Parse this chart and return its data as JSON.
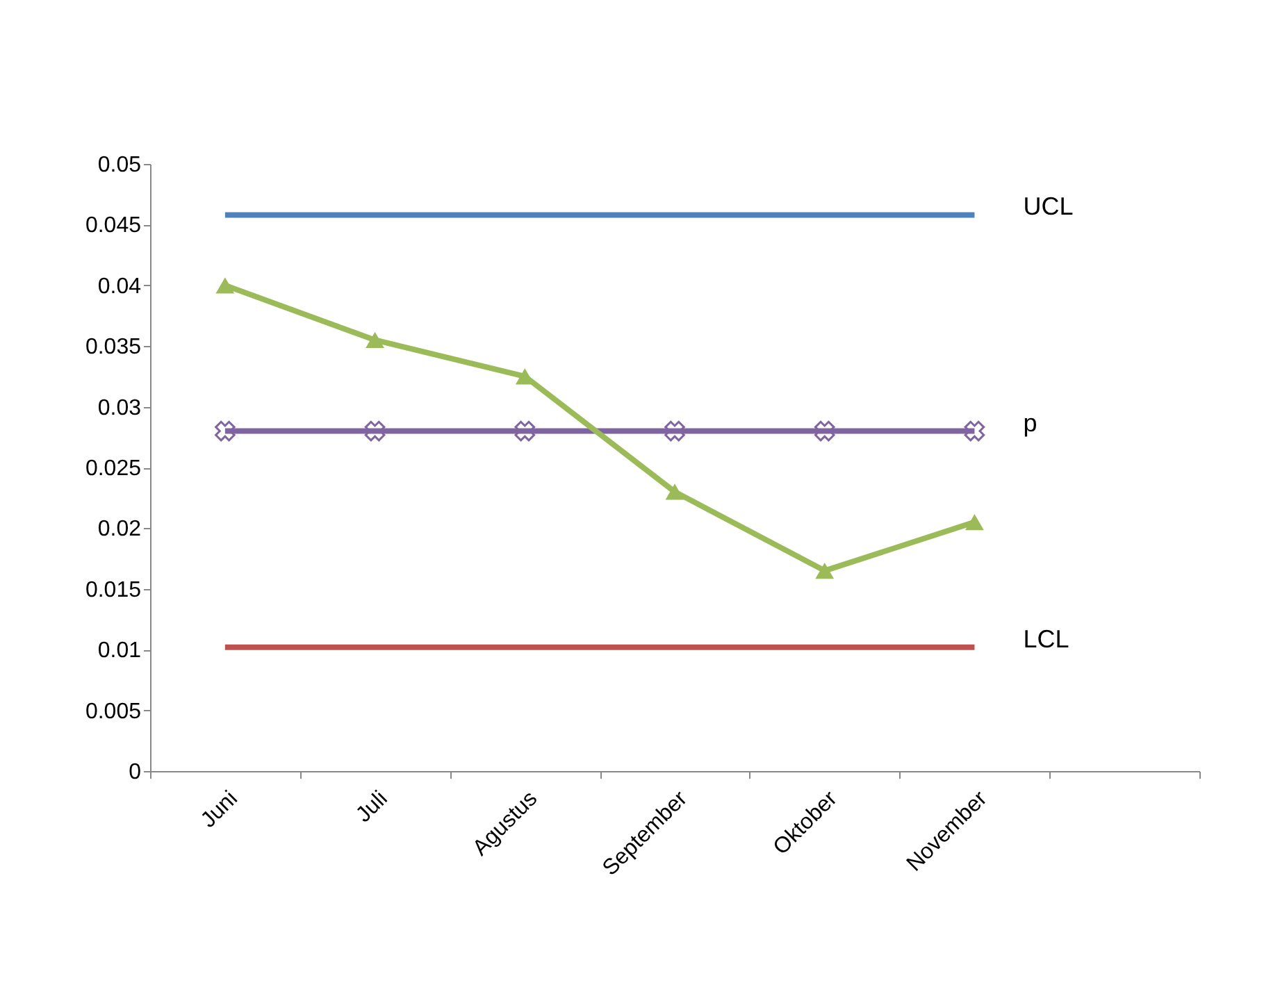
{
  "chart_data": {
    "type": "line",
    "categories": [
      "Juni",
      "Juli",
      "Agustus",
      "September",
      "Oktober",
      "November",
      null
    ],
    "series": [
      {
        "name": "UCL",
        "color": "#4f81bd",
        "marker": "none",
        "values": [
          0.0458,
          0.0458,
          0.0458,
          0.0458,
          0.0458,
          0.0458,
          null
        ]
      },
      {
        "name": "p",
        "color": "#8064a2",
        "marker": "cross",
        "values": [
          0.028,
          0.028,
          0.028,
          0.028,
          0.028,
          0.028,
          null
        ]
      },
      {
        "name": "LCL",
        "color": "#c0504d",
        "marker": "none",
        "values": [
          0.0102,
          0.0102,
          0.0102,
          0.0102,
          0.0102,
          0.0102,
          null
        ]
      },
      {
        "color": "#9bbb59",
        "marker": "triangle",
        "values": [
          0.04,
          0.0355,
          0.0325,
          0.023,
          0.0165,
          0.0205,
          null
        ]
      }
    ],
    "ylim": [
      0,
      0.05
    ],
    "yticks": [
      0,
      0.005,
      0.01,
      0.015,
      0.02,
      0.025,
      0.03,
      0.035,
      0.04,
      0.045,
      0.05
    ],
    "grid": false,
    "line_style": "solid"
  }
}
